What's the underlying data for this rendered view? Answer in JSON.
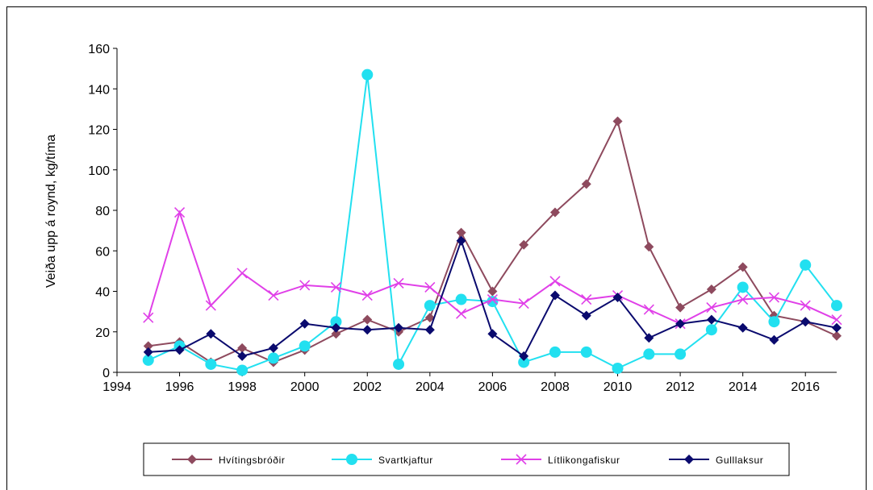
{
  "chart_data": {
    "type": "line",
    "title": "",
    "xlabel": "",
    "ylabel": "Veiða upp á roynd, kg/tíma",
    "xlim": [
      1994,
      2017
    ],
    "ylim": [
      0,
      160
    ],
    "x_ticks": [
      1994,
      1996,
      1998,
      2000,
      2002,
      2004,
      2006,
      2008,
      2010,
      2012,
      2014,
      2016
    ],
    "y_ticks": [
      0,
      20,
      40,
      60,
      80,
      100,
      120,
      140,
      160
    ],
    "grid": false,
    "legend_position": "bottom",
    "x": [
      1995,
      1996,
      1997,
      1998,
      1999,
      2000,
      2001,
      2002,
      2003,
      2004,
      2005,
      2006,
      2007,
      2008,
      2009,
      2010,
      2011,
      2012,
      2013,
      2014,
      2015,
      2016,
      2017
    ],
    "series": [
      {
        "name": "Hvítingsbróðir",
        "color": "#8e4a5e",
        "marker": "diamond",
        "values": [
          13,
          15,
          5,
          12,
          5,
          11,
          19,
          26,
          20,
          27,
          69,
          40,
          63,
          79,
          93,
          124,
          62,
          32,
          41,
          52,
          28,
          25,
          18
        ]
      },
      {
        "name": "Svartkjaftur",
        "color": "#22e0f0",
        "marker": "circle",
        "values": [
          6,
          13,
          4,
          1,
          7,
          13,
          25,
          147,
          4,
          33,
          36,
          35,
          5,
          10,
          10,
          2,
          9,
          9,
          21,
          42,
          25,
          53,
          33
        ]
      },
      {
        "name": "Lítlikongafiskur",
        "color": "#e040e8",
        "marker": "x",
        "values": [
          27,
          79,
          33,
          49,
          38,
          43,
          42,
          38,
          44,
          42,
          29,
          36,
          34,
          45,
          36,
          38,
          31,
          24,
          32,
          36,
          37,
          33,
          26
        ]
      },
      {
        "name": "Gulllaksur",
        "color": "#0a0a6e",
        "marker": "diamond",
        "values": [
          10,
          11,
          19,
          8,
          12,
          24,
          22,
          21,
          22,
          21,
          65,
          19,
          8,
          38,
          28,
          37,
          17,
          24,
          26,
          22,
          16,
          25,
          22
        ]
      }
    ]
  }
}
